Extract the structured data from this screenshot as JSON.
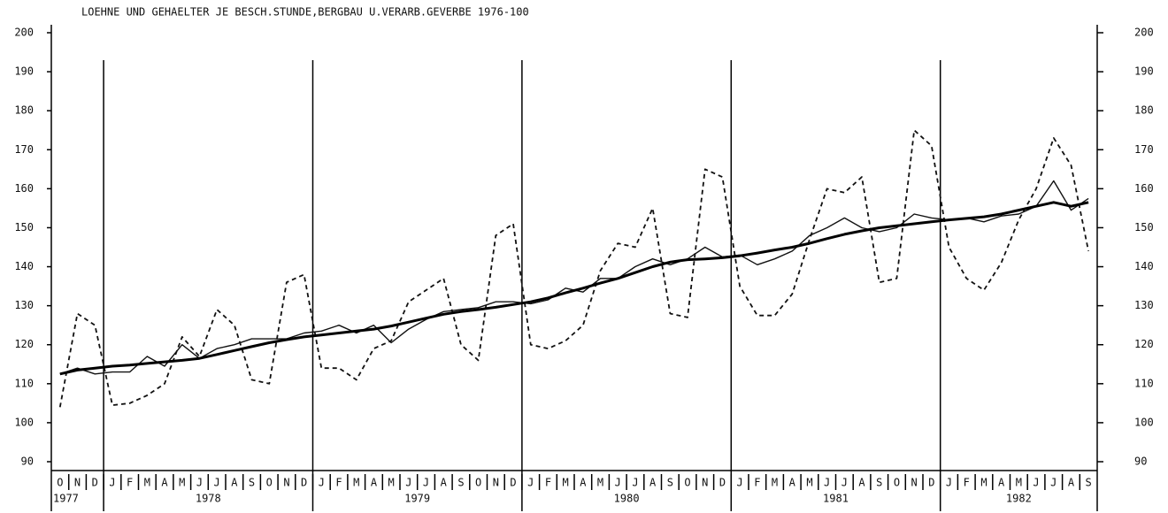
{
  "chart_data": {
    "type": "line",
    "title": "LOEHNE UND GEHAELTER JE BESCH.STUNDE,BERGBAU U.VERARB.GEVERBE 1976-100",
    "categories": [
      "O",
      "N",
      "D",
      "J",
      "F",
      "M",
      "A",
      "M",
      "J",
      "J",
      "A",
      "S",
      "O",
      "N",
      "D",
      "J",
      "F",
      "M",
      "A",
      "M",
      "J",
      "J",
      "A",
      "S",
      "O",
      "N",
      "D",
      "J",
      "F",
      "M",
      "A",
      "M",
      "J",
      "J",
      "A",
      "S",
      "O",
      "N",
      "D",
      "J",
      "F",
      "M",
      "A",
      "M",
      "J",
      "J",
      "A",
      "S",
      "O",
      "N",
      "D",
      "J",
      "F",
      "M",
      "A",
      "M",
      "J",
      "J",
      "A",
      "S"
    ],
    "years": [
      "1977",
      "1978",
      "1979",
      "1980",
      "1981",
      "1982"
    ],
    "ylim": [
      90,
      200
    ],
    "yticks": [
      90,
      100,
      110,
      120,
      130,
      140,
      150,
      160,
      170,
      180,
      190,
      200
    ],
    "series": [
      {
        "color": "#111",
        "style": "dashed",
        "values": [
          104,
          128,
          125,
          104.5,
          105,
          107,
          110,
          122,
          117,
          129,
          125,
          111,
          110,
          136,
          138,
          114,
          114,
          111,
          119,
          121,
          131,
          134,
          137,
          120,
          116,
          148,
          151,
          120,
          119,
          121,
          125,
          139,
          146,
          145,
          155,
          128,
          127,
          165,
          163,
          135,
          127.5,
          127.5,
          133,
          147,
          160,
          159,
          163,
          136,
          137,
          175,
          171,
          145,
          137,
          134,
          141,
          152,
          160,
          173,
          166,
          144
        ]
      },
      {
        "color": "#111",
        "style": "thin",
        "values": [
          112.5,
          114,
          112.5,
          113,
          113,
          117,
          114.5,
          120,
          116.5,
          119,
          120,
          121.5,
          121.5,
          121.5,
          123,
          123.5,
          125,
          123,
          125,
          120.5,
          124,
          126.5,
          128.5,
          129,
          129.5,
          131,
          131,
          130.5,
          131.5,
          134.5,
          133.5,
          137,
          137,
          140,
          142,
          140.5,
          142,
          145,
          142.5,
          143,
          140.5,
          142,
          144,
          148,
          150,
          152.5,
          150,
          149,
          150,
          153.5,
          152.5,
          152,
          152.5,
          151.5,
          153,
          153.5,
          155.5,
          162,
          154.5,
          157.5
        ]
      },
      {
        "color": "#000",
        "style": "thick",
        "values": [
          112.5,
          113.5,
          114,
          114.5,
          114.8,
          115.2,
          115.6,
          116,
          116.5,
          117.5,
          118.5,
          119.5,
          120.5,
          121.3,
          122,
          122.5,
          123,
          123.5,
          124,
          124.8,
          125.8,
          126.8,
          127.8,
          128.5,
          129,
          129.6,
          130.3,
          131,
          132,
          133.3,
          134.5,
          135.8,
          137,
          138.5,
          140,
          141.2,
          141.8,
          142,
          142.3,
          142.8,
          143.5,
          144.3,
          145,
          146,
          147.2,
          148.3,
          149.2,
          150,
          150.5,
          151,
          151.5,
          152,
          152.4,
          152.8,
          153.5,
          154.5,
          155.5,
          156.5,
          155.5,
          156.5
        ]
      }
    ]
  }
}
